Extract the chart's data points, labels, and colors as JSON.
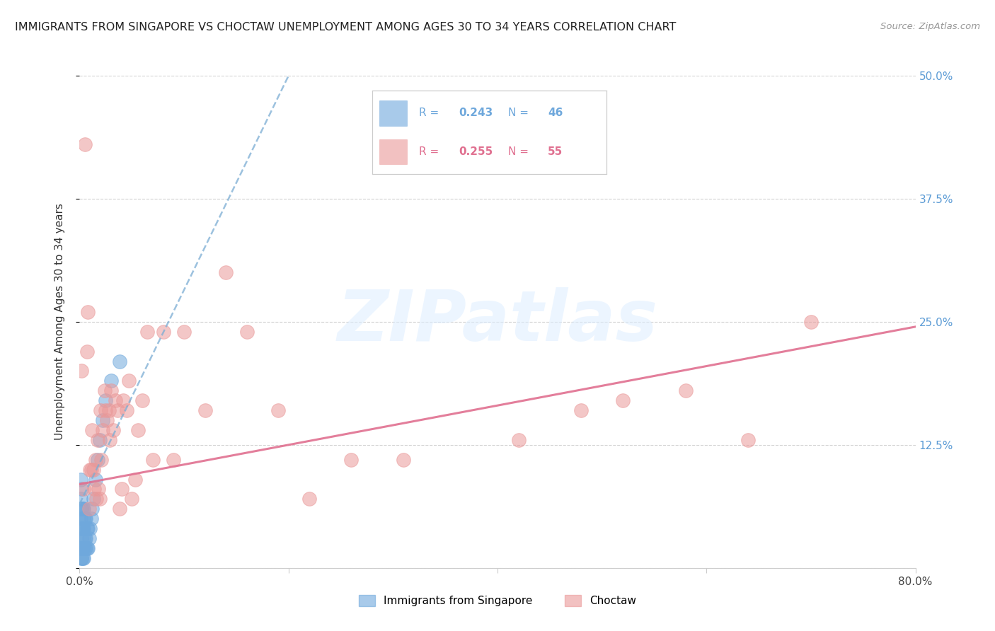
{
  "title": "IMMIGRANTS FROM SINGAPORE VS CHOCTAW UNEMPLOYMENT AMONG AGES 30 TO 34 YEARS CORRELATION CHART",
  "source": "Source: ZipAtlas.com",
  "ylabel": "Unemployment Among Ages 30 to 34 years",
  "xlim": [
    0.0,
    0.8
  ],
  "ylim": [
    0.0,
    0.5
  ],
  "xticks": [
    0.0,
    0.2,
    0.4,
    0.6,
    0.8
  ],
  "xticklabels": [
    "0.0%",
    "",
    "",
    "",
    "80.0%"
  ],
  "yticks": [
    0.0,
    0.125,
    0.25,
    0.375,
    0.5
  ],
  "right_yticklabels": [
    "",
    "12.5%",
    "25.0%",
    "37.5%",
    "50.0%"
  ],
  "watermark_text": "ZIPatlas",
  "sg_color": "#6fa8dc",
  "ch_color": "#ea9999",
  "sg_trend_color": "#7badd4",
  "ch_trend_color": "#e07090",
  "sg_R": "0.243",
  "sg_N": "46",
  "ch_R": "0.255",
  "ch_N": "55",
  "sg_label": "Immigrants from Singapore",
  "ch_label": "Choctaw",
  "sg_trend_x0": 0.0,
  "sg_trend_y0": 0.065,
  "sg_trend_x1": 0.2,
  "sg_trend_y1": 0.5,
  "ch_trend_x0": 0.0,
  "ch_trend_y0": 0.085,
  "ch_trend_x1": 0.8,
  "ch_trend_y1": 0.245,
  "sg_x": [
    0.0005,
    0.001,
    0.001,
    0.001,
    0.0015,
    0.0015,
    0.0015,
    0.002,
    0.002,
    0.002,
    0.002,
    0.002,
    0.0025,
    0.0025,
    0.003,
    0.003,
    0.003,
    0.003,
    0.0035,
    0.0035,
    0.004,
    0.004,
    0.004,
    0.004,
    0.005,
    0.005,
    0.005,
    0.006,
    0.006,
    0.006,
    0.007,
    0.007,
    0.008,
    0.008,
    0.009,
    0.01,
    0.011,
    0.012,
    0.013,
    0.015,
    0.017,
    0.019,
    0.022,
    0.025,
    0.03,
    0.038
  ],
  "sg_y": [
    0.02,
    0.05,
    0.07,
    0.09,
    0.01,
    0.03,
    0.06,
    0.01,
    0.02,
    0.04,
    0.06,
    0.08,
    0.02,
    0.04,
    0.01,
    0.02,
    0.04,
    0.06,
    0.03,
    0.05,
    0.01,
    0.02,
    0.04,
    0.06,
    0.02,
    0.03,
    0.05,
    0.02,
    0.03,
    0.05,
    0.02,
    0.04,
    0.02,
    0.04,
    0.03,
    0.04,
    0.05,
    0.06,
    0.07,
    0.09,
    0.11,
    0.13,
    0.15,
    0.17,
    0.19,
    0.21
  ],
  "ch_x": [
    0.002,
    0.004,
    0.005,
    0.007,
    0.008,
    0.009,
    0.01,
    0.011,
    0.012,
    0.013,
    0.014,
    0.015,
    0.016,
    0.017,
    0.018,
    0.019,
    0.02,
    0.021,
    0.022,
    0.024,
    0.025,
    0.026,
    0.028,
    0.029,
    0.03,
    0.032,
    0.034,
    0.036,
    0.038,
    0.04,
    0.042,
    0.045,
    0.047,
    0.05,
    0.053,
    0.056,
    0.06,
    0.065,
    0.07,
    0.08,
    0.09,
    0.1,
    0.12,
    0.14,
    0.16,
    0.19,
    0.22,
    0.26,
    0.31,
    0.42,
    0.48,
    0.52,
    0.58,
    0.64,
    0.7
  ],
  "ch_y": [
    0.2,
    0.08,
    0.43,
    0.22,
    0.26,
    0.06,
    0.1,
    0.1,
    0.14,
    0.1,
    0.08,
    0.11,
    0.07,
    0.13,
    0.08,
    0.07,
    0.16,
    0.11,
    0.14,
    0.18,
    0.16,
    0.15,
    0.16,
    0.13,
    0.18,
    0.14,
    0.17,
    0.16,
    0.06,
    0.08,
    0.17,
    0.16,
    0.19,
    0.07,
    0.09,
    0.14,
    0.17,
    0.24,
    0.11,
    0.24,
    0.11,
    0.24,
    0.16,
    0.3,
    0.24,
    0.16,
    0.07,
    0.11,
    0.11,
    0.13,
    0.16,
    0.17,
    0.18,
    0.13,
    0.25
  ]
}
